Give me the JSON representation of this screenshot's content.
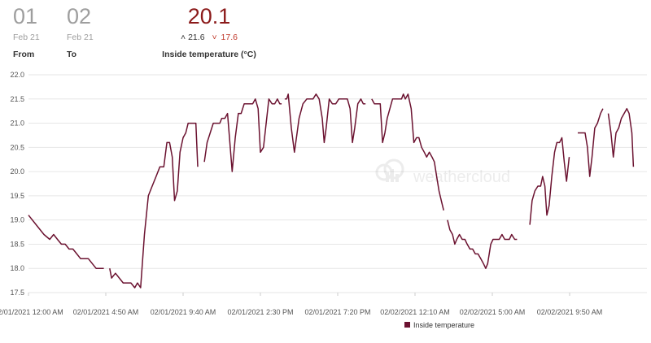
{
  "header": {
    "from": {
      "day": "01",
      "month": "Feb 21",
      "label": "From"
    },
    "to": {
      "day": "02",
      "month": "Feb 21",
      "label": "To"
    },
    "current": {
      "value": "20.1",
      "max": "21.6",
      "min": "17.6",
      "label": "Inside temperature (°C)",
      "max_icon": "arrow-up-icon",
      "min_icon": "arrow-down-icon"
    }
  },
  "watermark": "weathercloud",
  "colors": {
    "series": "#6b1230",
    "current": "#8b1a1a",
    "min": "#c0392b"
  },
  "chart_data": {
    "type": "line",
    "title": "",
    "xlabel": "",
    "ylabel": "",
    "ylim": [
      17.5,
      22.0
    ],
    "yticks": [
      "17.5",
      "18.0",
      "18.5",
      "19.0",
      "19.5",
      "20.0",
      "20.5",
      "21.0",
      "21.5",
      "22.0"
    ],
    "xticks": [
      "02/01/2021 12:00 AM",
      "02/01/2021 4:50 AM",
      "02/01/2021 9:40 AM",
      "02/01/2021 2:30 PM",
      "02/01/2021 7:20 PM",
      "02/02/2021 12:10 AM",
      "02/02/2021 5:00 AM",
      "02/02/2021 9:50 AM"
    ],
    "grid": true,
    "legend": "bottom",
    "series": [
      {
        "name": "Inside temperature",
        "color": "#6b1230",
        "segments": [
          [
            [
              0,
              19.1
            ],
            [
              20,
              18.9
            ],
            [
              40,
              18.7
            ],
            [
              55,
              18.6
            ],
            [
              65,
              18.7
            ],
            [
              75,
              18.6
            ],
            [
              85,
              18.5
            ],
            [
              95,
              18.5
            ],
            [
              105,
              18.4
            ],
            [
              115,
              18.4
            ],
            [
              125,
              18.3
            ],
            [
              135,
              18.2
            ],
            [
              145,
              18.2
            ],
            [
              155,
              18.2
            ],
            [
              165,
              18.1
            ],
            [
              175,
              18.0
            ],
            [
              185,
              18.0
            ],
            [
              195,
              18.0
            ]
          ],
          [
            [
              210,
              18.0
            ],
            [
              215,
              17.8
            ],
            [
              225,
              17.9
            ],
            [
              235,
              17.8
            ],
            [
              245,
              17.7
            ],
            [
              255,
              17.7
            ],
            [
              265,
              17.7
            ],
            [
              275,
              17.6
            ],
            [
              282,
              17.7
            ],
            [
              290,
              17.6
            ],
            [
              300,
              18.7
            ],
            [
              310,
              19.5
            ],
            [
              320,
              19.7
            ],
            [
              330,
              19.9
            ],
            [
              340,
              20.1
            ],
            [
              350,
              20.1
            ],
            [
              358,
              20.6
            ],
            [
              365,
              20.6
            ],
            [
              372,
              20.3
            ],
            [
              378,
              19.4
            ],
            [
              385,
              19.6
            ],
            [
              392,
              20.4
            ],
            [
              400,
              20.7
            ],
            [
              407,
              20.8
            ],
            [
              413,
              21.0
            ],
            [
              420,
              21.0
            ],
            [
              428,
              21.0
            ],
            [
              433,
              21.0
            ],
            [
              438,
              20.1
            ]
          ],
          [
            [
              455,
              20.2
            ],
            [
              462,
              20.6
            ],
            [
              470,
              20.8
            ],
            [
              478,
              21.0
            ],
            [
              486,
              21.0
            ],
            [
              495,
              21.0
            ],
            [
              500,
              21.1
            ],
            [
              508,
              21.1
            ],
            [
              515,
              21.2
            ],
            [
              520,
              20.7
            ],
            [
              527,
              20.0
            ],
            [
              535,
              20.7
            ],
            [
              543,
              21.2
            ],
            [
              550,
              21.2
            ],
            [
              558,
              21.4
            ],
            [
              565,
              21.4
            ],
            [
              573,
              21.4
            ],
            [
              580,
              21.4
            ],
            [
              587,
              21.5
            ],
            [
              594,
              21.3
            ],
            [
              600,
              20.4
            ],
            [
              608,
              20.5
            ],
            [
              615,
              21.0
            ],
            [
              622,
              21.5
            ],
            [
              630,
              21.4
            ],
            [
              637,
              21.4
            ],
            [
              644,
              21.5
            ],
            [
              650,
              21.4
            ],
            [
              655,
              21.4
            ]
          ],
          [
            [
              663,
              21.5
            ],
            [
              668,
              21.5
            ],
            [
              672,
              21.6
            ],
            [
              680,
              20.9
            ],
            [
              688,
              20.4
            ],
            [
              695,
              20.8
            ],
            [
              700,
              21.1
            ],
            [
              710,
              21.4
            ],
            [
              720,
              21.5
            ],
            [
              728,
              21.5
            ],
            [
              736,
              21.5
            ],
            [
              744,
              21.6
            ],
            [
              752,
              21.5
            ],
            [
              760,
              21.1
            ],
            [
              765,
              20.6
            ],
            [
              770,
              20.9
            ],
            [
              778,
              21.5
            ],
            [
              786,
              21.4
            ],
            [
              795,
              21.4
            ],
            [
              803,
              21.5
            ],
            [
              810,
              21.5
            ],
            [
              818,
              21.5
            ],
            [
              825,
              21.5
            ],
            [
              832,
              21.3
            ],
            [
              838,
              20.6
            ],
            [
              844,
              20.9
            ],
            [
              852,
              21.4
            ],
            [
              860,
              21.5
            ],
            [
              866,
              21.4
            ],
            [
              872,
              21.4
            ]
          ],
          [
            [
              888,
              21.5
            ],
            [
              895,
              21.4
            ],
            [
              902,
              21.4
            ],
            [
              910,
              21.4
            ],
            [
              916,
              20.6
            ],
            [
              922,
              20.8
            ],
            [
              928,
              21.1
            ],
            [
              935,
              21.3
            ],
            [
              942,
              21.5
            ],
            [
              950,
              21.5
            ],
            [
              958,
              21.5
            ],
            [
              965,
              21.5
            ],
            [
              970,
              21.6
            ],
            [
              975,
              21.5
            ],
            [
              982,
              21.6
            ],
            [
              990,
              21.3
            ],
            [
              997,
              20.6
            ],
            [
              1004,
              20.7
            ],
            [
              1010,
              20.7
            ],
            [
              1017,
              20.5
            ],
            [
              1024,
              20.4
            ],
            [
              1030,
              20.3
            ],
            [
              1037,
              20.4
            ],
            [
              1044,
              20.3
            ],
            [
              1050,
              20.2
            ],
            [
              1056,
              19.9
            ],
            [
              1062,
              19.6
            ],
            [
              1068,
              19.4
            ],
            [
              1074,
              19.2
            ]
          ],
          [
            [
              1084,
              19.0
            ],
            [
              1090,
              18.8
            ],
            [
              1097,
              18.7
            ],
            [
              1103,
              18.5
            ],
            [
              1108,
              18.6
            ],
            [
              1115,
              18.7
            ],
            [
              1122,
              18.6
            ],
            [
              1129,
              18.6
            ],
            [
              1135,
              18.5
            ],
            [
              1142,
              18.4
            ],
            [
              1149,
              18.4
            ],
            [
              1156,
              18.3
            ],
            [
              1163,
              18.3
            ],
            [
              1170,
              18.2
            ],
            [
              1177,
              18.1
            ],
            [
              1183,
              18.0
            ],
            [
              1188,
              18.1
            ],
            [
              1196,
              18.5
            ],
            [
              1202,
              18.6
            ],
            [
              1210,
              18.6
            ],
            [
              1218,
              18.6
            ],
            [
              1225,
              18.7
            ],
            [
              1232,
              18.6
            ],
            [
              1238,
              18.6
            ],
            [
              1244,
              18.6
            ],
            [
              1250,
              18.7
            ],
            [
              1258,
              18.6
            ],
            [
              1264,
              18.6
            ]
          ],
          [
            [
              1297,
              18.9
            ],
            [
              1303,
              19.4
            ],
            [
              1310,
              19.6
            ],
            [
              1318,
              19.7
            ],
            [
              1325,
              19.7
            ],
            [
              1330,
              19.9
            ],
            [
              1336,
              19.7
            ],
            [
              1341,
              19.1
            ],
            [
              1347,
              19.3
            ],
            [
              1354,
              19.9
            ],
            [
              1361,
              20.4
            ],
            [
              1367,
              20.6
            ],
            [
              1374,
              20.6
            ],
            [
              1380,
              20.7
            ],
            [
              1386,
              20.2
            ],
            [
              1392,
              19.8
            ],
            [
              1399,
              20.3
            ]
          ],
          [
            [
              1421,
              20.8
            ],
            [
              1430,
              20.8
            ],
            [
              1440,
              20.8
            ],
            [
              1446,
              20.5
            ],
            [
              1452,
              19.9
            ],
            [
              1458,
              20.3
            ],
            [
              1465,
              20.9
            ],
            [
              1472,
              21.0
            ],
            [
              1480,
              21.2
            ],
            [
              1486,
              21.3
            ]
          ],
          [
            [
              1500,
              21.2
            ],
            [
              1507,
              20.8
            ],
            [
              1513,
              20.3
            ],
            [
              1520,
              20.8
            ],
            [
              1527,
              20.9
            ],
            [
              1534,
              21.1
            ],
            [
              1541,
              21.2
            ],
            [
              1548,
              21.3
            ],
            [
              1554,
              21.2
            ],
            [
              1561,
              20.8
            ],
            [
              1565,
              20.1
            ]
          ]
        ]
      }
    ]
  }
}
